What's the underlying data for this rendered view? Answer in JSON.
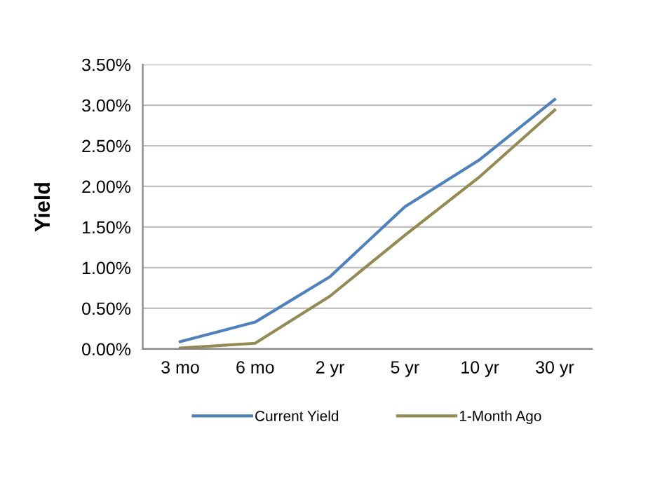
{
  "chart_data": {
    "type": "line",
    "ylabel": "Yield",
    "categories": [
      "3 mo",
      "6 mo",
      "2 yr",
      "5 yr",
      "10 yr",
      "30 yr"
    ],
    "series": [
      {
        "name": "Current Yield",
        "color": "#4f81bd",
        "values": [
          0.09,
          0.33,
          0.89,
          1.75,
          2.33,
          3.07
        ]
      },
      {
        "name": "1-Month Ago",
        "color": "#948a54",
        "values": [
          0.01,
          0.07,
          0.65,
          1.4,
          2.12,
          2.94
        ]
      }
    ],
    "ylim": [
      0,
      3.5
    ],
    "yticks": [
      {
        "value": 0,
        "label": "0.00%"
      },
      {
        "value": 0.5,
        "label": "0.50%"
      },
      {
        "value": 1,
        "label": "1.00%"
      },
      {
        "value": 1.5,
        "label": "1.50%"
      },
      {
        "value": 2,
        "label": "2.00%"
      },
      {
        "value": 2.5,
        "label": "2.50%"
      },
      {
        "value": 3,
        "label": "3.00%"
      },
      {
        "value": 3.5,
        "label": "3.50%"
      }
    ],
    "grid": "y",
    "legend": "bottom",
    "marker": "none",
    "line_style": "solid"
  }
}
